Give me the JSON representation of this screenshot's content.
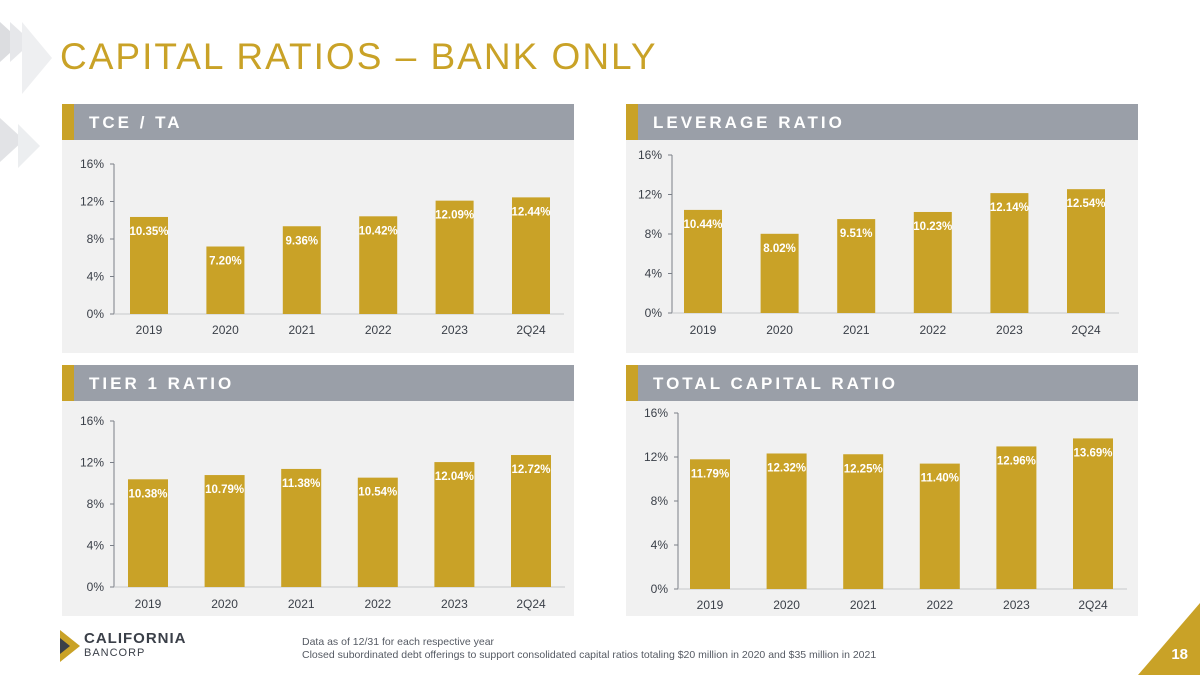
{
  "slide": {
    "title": "CAPITAL RATIOS – BANK ONLY",
    "page_number": "18",
    "logo_line1": "CALIFORNIA",
    "logo_line2": "BANCORP",
    "notes": [
      "Data as of 12/31 for each respective year",
      "Closed subordinated debt offerings to support consolidated capital ratios totaling $20 million in 2020 and $35 million in 2021"
    ]
  },
  "colors": {
    "bar": "#c9a227",
    "label": "#ffffff",
    "axis": "#7a7f88",
    "header": "#9a9fa8",
    "panel": "#f1f1f1",
    "text": "#3a3f48"
  },
  "chart_data": [
    {
      "type": "bar",
      "title": "TCE / TA",
      "categories": [
        "2019",
        "2020",
        "2021",
        "2022",
        "2023",
        "2Q24"
      ],
      "values": [
        10.35,
        7.2,
        9.36,
        10.42,
        12.09,
        12.44
      ],
      "data_labels": [
        "10.35%",
        "7.20%",
        "9.36%",
        "10.42%",
        "12.09%",
        "12.44%"
      ],
      "yticks": [
        "0%",
        "4%",
        "8%",
        "12%",
        "16%"
      ],
      "ylim": [
        0,
        16
      ]
    },
    {
      "type": "bar",
      "title": "LEVERAGE RATIO",
      "categories": [
        "2019",
        "2020",
        "2021",
        "2022",
        "2023",
        "2Q24"
      ],
      "values": [
        10.44,
        8.02,
        9.51,
        10.23,
        12.14,
        12.54
      ],
      "data_labels": [
        "10.44%",
        "8.02%",
        "9.51%",
        "10.23%",
        "12.14%",
        "12.54%"
      ],
      "yticks": [
        "0%",
        "4%",
        "8%",
        "12%",
        "16%"
      ],
      "ylim": [
        0,
        16
      ]
    },
    {
      "type": "bar",
      "title": "TIER 1 RATIO",
      "categories": [
        "2019",
        "2020",
        "2021",
        "2022",
        "2023",
        "2Q24"
      ],
      "values": [
        10.38,
        10.79,
        11.38,
        10.54,
        12.04,
        12.72
      ],
      "data_labels": [
        "10.38%",
        "10.79%",
        "11.38%",
        "10.54%",
        "12.04%",
        "12.72%"
      ],
      "yticks": [
        "0%",
        "4%",
        "8%",
        "12%",
        "16%"
      ],
      "ylim": [
        0,
        16
      ]
    },
    {
      "type": "bar",
      "title": "TOTAL CAPITAL RATIO",
      "categories": [
        "2019",
        "2020",
        "2021",
        "2022",
        "2023",
        "2Q24"
      ],
      "values": [
        11.79,
        12.32,
        12.25,
        11.4,
        12.96,
        13.69
      ],
      "data_labels": [
        "11.79%",
        "12.32%",
        "12.25%",
        "11.40%",
        "12.96%",
        "13.69%"
      ],
      "yticks": [
        "0%",
        "4%",
        "8%",
        "12%",
        "16%"
      ],
      "ylim": [
        0,
        16
      ]
    }
  ]
}
